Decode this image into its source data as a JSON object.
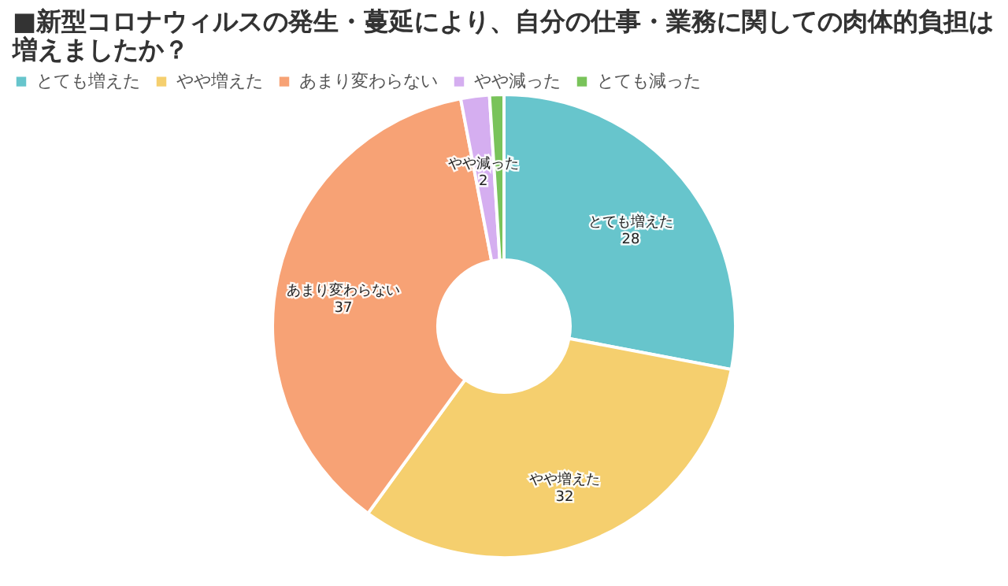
{
  "chart_data": {
    "type": "donut",
    "title": "■新型コロナウィルスの発生・蔓延により、自分の仕事・業務に関しての肉体的負担は増えましたか？",
    "categories": [
      "とても増えた",
      "やや増えた",
      "あまり変わらない",
      "やや減った",
      "とても減った"
    ],
    "values": [
      28,
      32,
      37,
      2,
      1
    ],
    "value_labels": [
      "28",
      "32",
      "37",
      "2",
      null
    ],
    "colors": [
      "#67c5cc",
      "#f5cf6e",
      "#f7a275",
      "#d5aef0",
      "#79c35a"
    ],
    "legend": "top left"
  }
}
